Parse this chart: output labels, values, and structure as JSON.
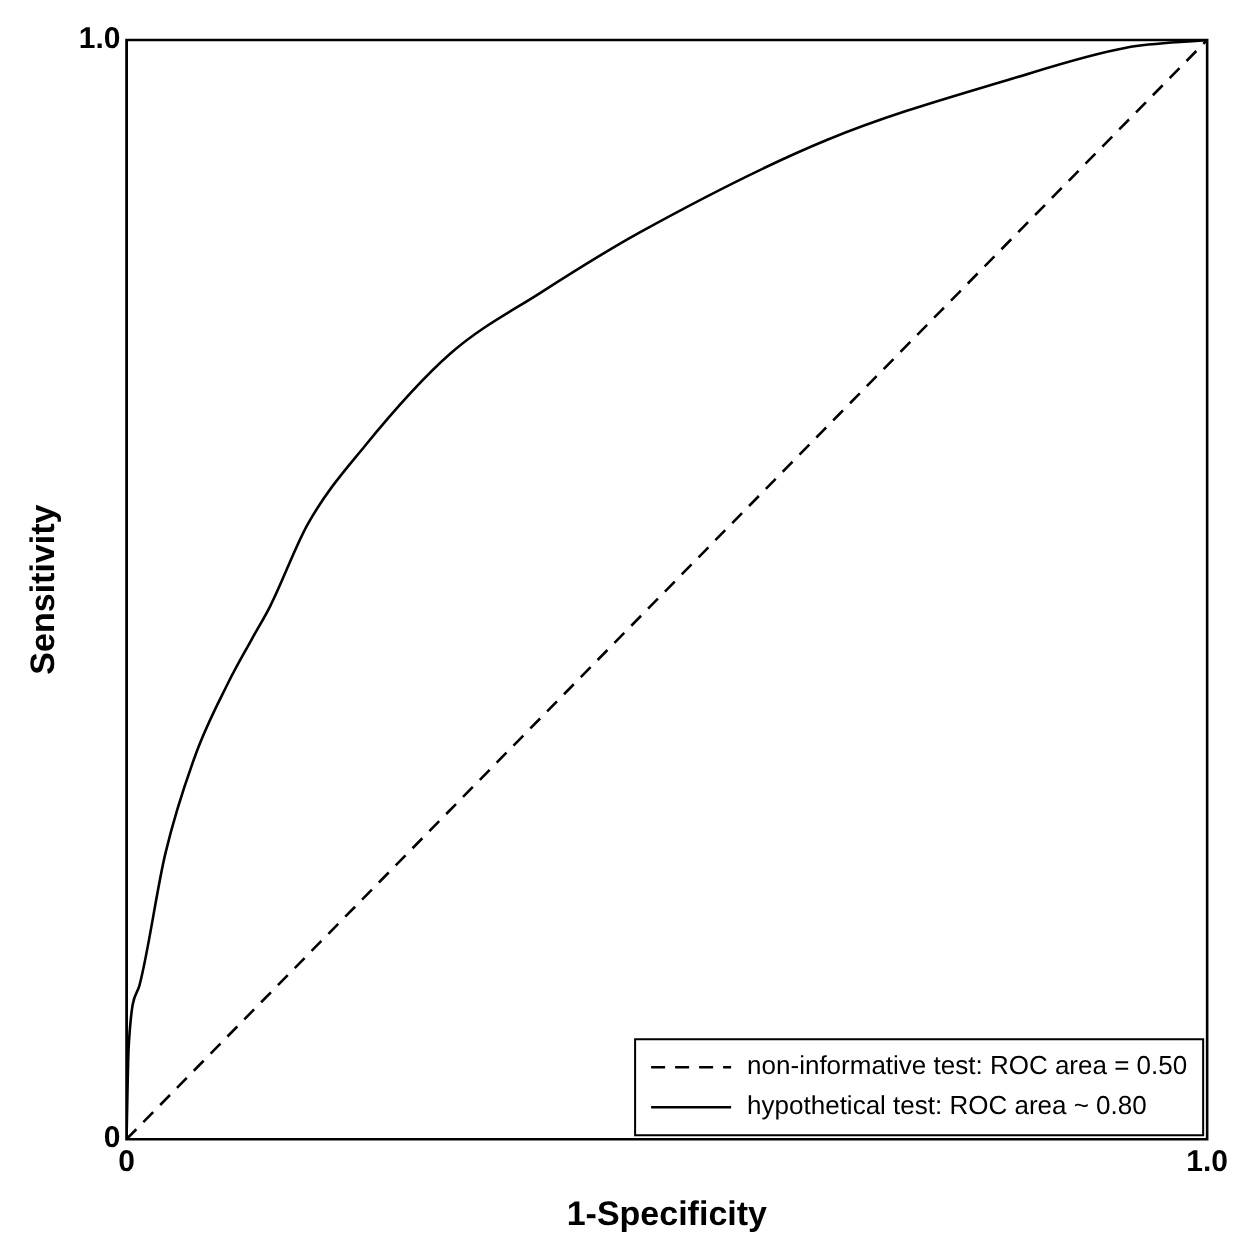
{
  "chart_data": {
    "type": "line",
    "xlabel": "1-Specificity",
    "ylabel": "Sensitivity",
    "xlim": [
      0,
      1
    ],
    "ylim": [
      0,
      1
    ],
    "xticks": [
      {
        "value": 0,
        "label": "0"
      },
      {
        "value": 1,
        "label": "1.0"
      }
    ],
    "yticks": [
      {
        "value": 0,
        "label": "0"
      },
      {
        "value": 1,
        "label": "1.0"
      }
    ],
    "legend": "bottom right",
    "marker": "none",
    "series": [
      {
        "name": "non-informative test: ROC area = 0.50",
        "color": "#000000",
        "line_style": "dashed",
        "x": [
          0,
          1
        ],
        "values": [
          0,
          1
        ]
      },
      {
        "name": "hypothetical test: ROC area ~ 0.80",
        "color": "#000000",
        "line_style": "solid",
        "x": [
          0,
          0.002,
          0.012,
          0.036,
          0.064,
          0.094,
          0.116,
          0.133,
          0.168,
          0.22,
          0.3,
          0.383,
          0.475,
          0.648,
          0.82,
          0.925,
          1
        ],
        "values": [
          0,
          0.084,
          0.14,
          0.26,
          0.35,
          0.415,
          0.455,
          0.485,
          0.56,
          0.63,
          0.715,
          0.77,
          0.825,
          0.909,
          0.965,
          0.993,
          1
        ]
      }
    ]
  }
}
